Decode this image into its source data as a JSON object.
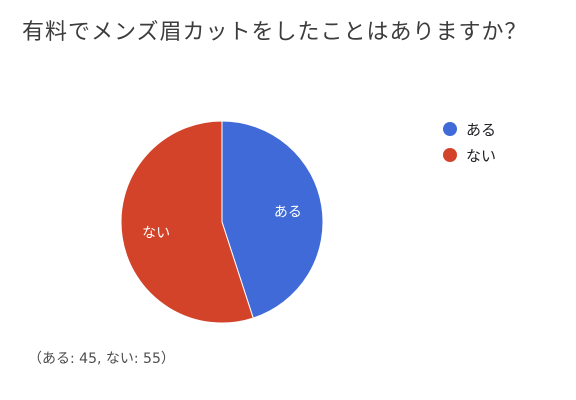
{
  "chart_data": {
    "type": "pie",
    "title": "有料でメンズ眉カットをしたことはありますか？",
    "categories": [
      "ある",
      "ない"
    ],
    "values": [
      45,
      55
    ],
    "colors": [
      "#3f6ad8",
      "#d2432a"
    ],
    "legend_position": "right",
    "footnote": "（ある: 45, ない: 55）"
  }
}
